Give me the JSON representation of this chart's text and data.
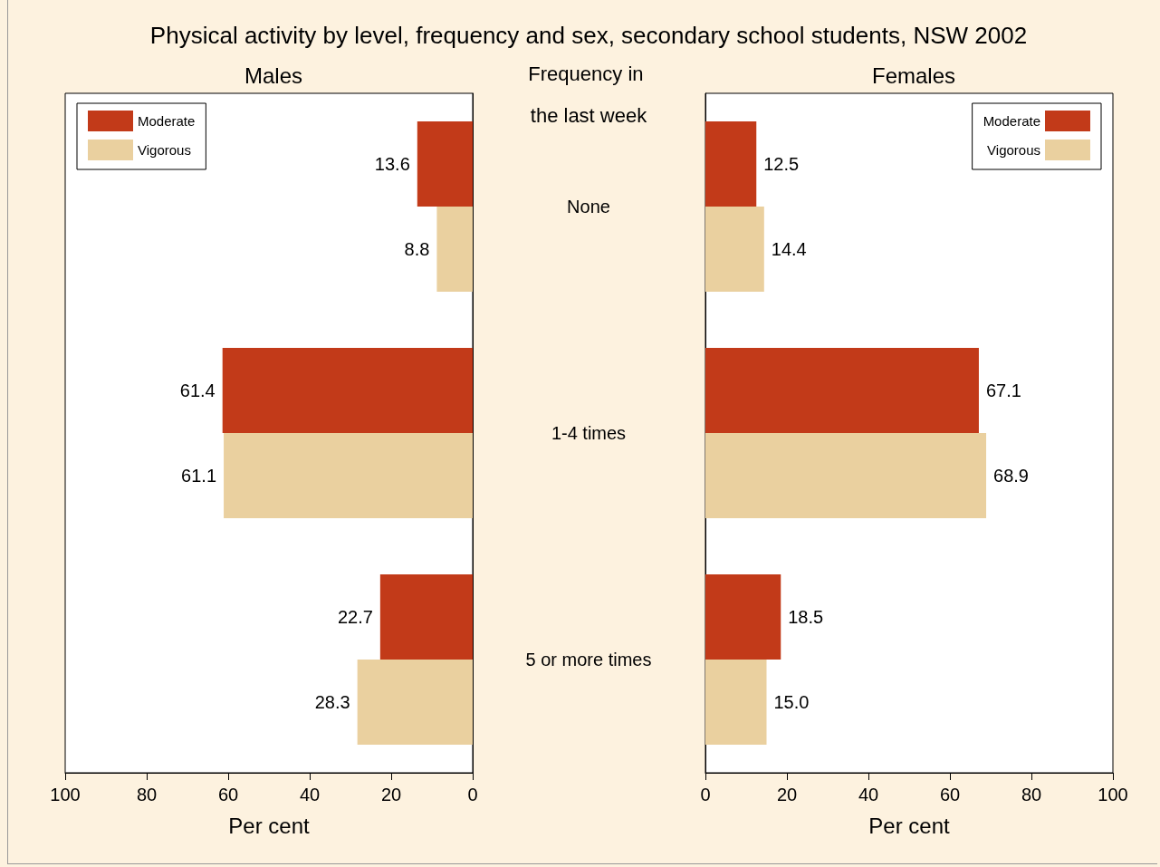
{
  "chart_data": [
    {
      "type": "bar",
      "orientation": "horizontal",
      "title": "Physical activity by level, frequency and sex, secondary school students, NSW 2002",
      "subtitle": "Males",
      "xlabel": "Per cent",
      "categories": [
        "None",
        "1-4 times",
        "5 or more times"
      ],
      "series": [
        {
          "name": "Moderate",
          "color": "#c23a19",
          "values": [
            13.6,
            61.4,
            22.7
          ]
        },
        {
          "name": "Vigorous",
          "color": "#ead09f",
          "values": [
            8.8,
            61.1,
            28.3
          ]
        }
      ],
      "xlim": [
        100,
        0
      ],
      "xticks": [
        100,
        80,
        60,
        40,
        20,
        0
      ],
      "ylabel": "Frequency in the last week",
      "data_labels": true,
      "legend": "top left",
      "grid": false
    },
    {
      "type": "bar",
      "orientation": "horizontal",
      "subtitle": "Females",
      "xlabel": "Per cent",
      "tick_labels": "x",
      "categories": [
        null,
        null,
        null
      ],
      "series": [
        {
          "name": "Moderate",
          "color": "#c23a19",
          "values": [
            12.5,
            67.1,
            18.5
          ]
        },
        {
          "name": "Vigorous",
          "color": "#ead09f",
          "values": [
            14.4,
            68.9,
            15.0
          ],
          "value_labels": [
            "14.4",
            "68.9",
            "15.0"
          ]
        }
      ],
      "xlim": [
        0,
        100
      ],
      "xticks": [
        0,
        20,
        40,
        60,
        80,
        100
      ],
      "data_labels": true,
      "legend": "top right",
      "grid": false
    }
  ]
}
